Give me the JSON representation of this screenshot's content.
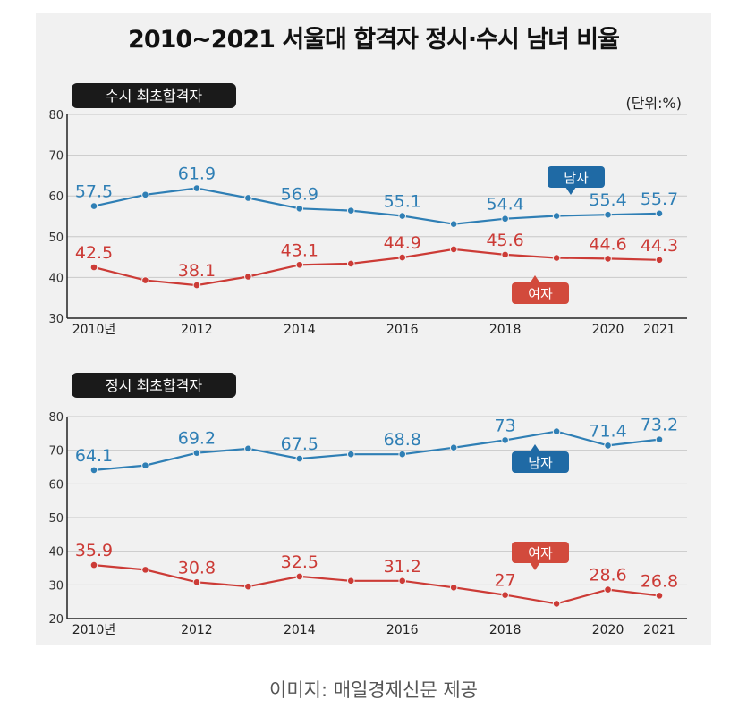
{
  "title": "2010~2021 서울대 합격자 정시·수시 남녀 비율",
  "unit": "(단위:%)",
  "caption": "이미지: 매일경제신문 제공",
  "colors": {
    "male": "#2f7fb5",
    "female": "#cc3b36",
    "tag": "#1a1a1a",
    "male_label_bg": "#1f6aa5",
    "female_label_bg": "#d24a3c"
  },
  "chart_data": [
    {
      "type": "line",
      "panel_label": "수시 최초합격자",
      "x": [
        2010,
        2011,
        2012,
        2013,
        2014,
        2015,
        2016,
        2017,
        2018,
        2019,
        2020,
        2021
      ],
      "tick_labels": [
        "2010년",
        "2012",
        "2014",
        "2016",
        "2018",
        "2020",
        "2021"
      ],
      "tick_years": [
        2010,
        2012,
        2014,
        2016,
        2018,
        2020,
        2021
      ],
      "ylim": [
        30,
        80
      ],
      "yticks": [
        30,
        40,
        50,
        60,
        70,
        80
      ],
      "series": [
        {
          "name": "남자",
          "key": "male",
          "values": [
            57.5,
            60.3,
            61.9,
            59.5,
            56.9,
            56.4,
            55.1,
            53.1,
            54.4,
            55.1,
            55.4,
            55.7
          ],
          "labeled": [
            57.5,
            null,
            61.9,
            null,
            56.9,
            null,
            55.1,
            null,
            54.4,
            null,
            55.4,
            55.7
          ]
        },
        {
          "name": "여자",
          "key": "female",
          "values": [
            42.5,
            39.3,
            38.1,
            40.2,
            43.1,
            43.4,
            44.9,
            46.9,
            45.6,
            44.8,
            44.6,
            44.3
          ],
          "labeled": [
            42.5,
            null,
            38.1,
            null,
            43.1,
            null,
            44.9,
            null,
            45.6,
            null,
            44.6,
            44.3
          ]
        }
      ]
    },
    {
      "type": "line",
      "panel_label": "정시 최초합격자",
      "x": [
        2010,
        2011,
        2012,
        2013,
        2014,
        2015,
        2016,
        2017,
        2018,
        2019,
        2020,
        2021
      ],
      "tick_labels": [
        "2010년",
        "2012",
        "2014",
        "2016",
        "2018",
        "2020",
        "2021"
      ],
      "tick_years": [
        2010,
        2012,
        2014,
        2016,
        2018,
        2020,
        2021
      ],
      "ylim": [
        20,
        80
      ],
      "yticks": [
        20,
        30,
        40,
        50,
        60,
        70,
        80
      ],
      "series": [
        {
          "name": "남자",
          "key": "male",
          "values": [
            64.1,
            65.5,
            69.2,
            70.5,
            67.5,
            68.8,
            68.8,
            70.8,
            73,
            75.6,
            71.4,
            73.2
          ],
          "labeled": [
            64.1,
            null,
            69.2,
            null,
            67.5,
            null,
            68.8,
            null,
            73,
            null,
            71.4,
            73.2
          ]
        },
        {
          "name": "여자",
          "key": "female",
          "values": [
            35.9,
            34.5,
            30.8,
            29.5,
            32.5,
            31.2,
            31.2,
            29.2,
            27,
            24.4,
            28.6,
            26.8
          ],
          "labeled": [
            35.9,
            null,
            30.8,
            null,
            32.5,
            null,
            31.2,
            null,
            27,
            null,
            28.6,
            26.8
          ]
        }
      ]
    }
  ]
}
